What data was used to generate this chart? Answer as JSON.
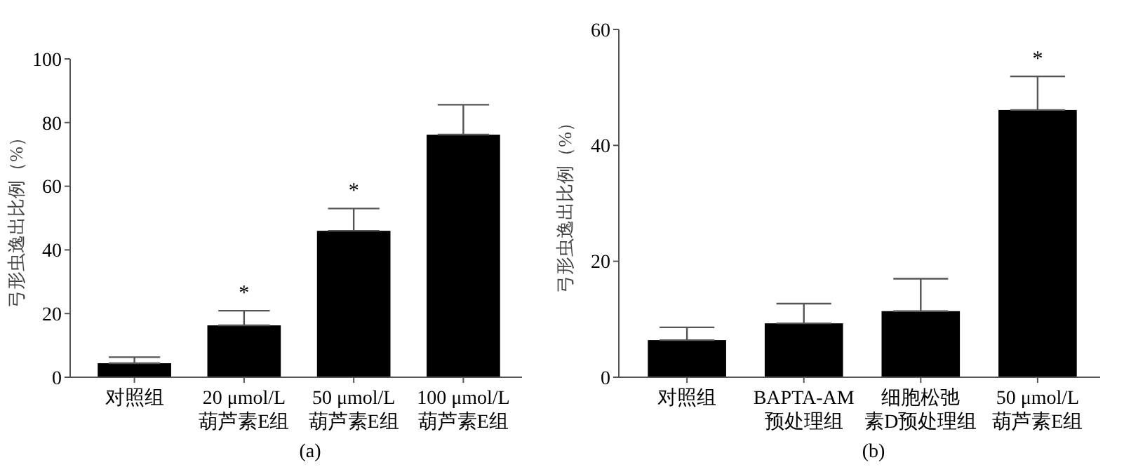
{
  "chart_data": [
    {
      "type": "bar",
      "ylabel": "弓形虫逸出比例（%）",
      "xlabel": "(a)",
      "categories": [
        "对照组",
        "20 μmol/L\n葫芦素E组",
        "50 μmol/L\n葫芦素E组",
        "100 μmol/L\n葫芦素E组"
      ],
      "values": [
        4.4,
        16.3,
        46,
        76.2
      ],
      "errors": [
        [
          4.4,
          6.3
        ],
        [
          16.3,
          20.9
        ],
        [
          46,
          53
        ],
        [
          76.2,
          85.6
        ]
      ],
      "color": "#000000",
      "ylim": [
        0,
        100
      ],
      "yticks": [
        0,
        20,
        40,
        60,
        80,
        100
      ],
      "grid": false,
      "annotations": [
        {
          "text": "*",
          "x": "20 μmol/L\n葫芦素E组",
          "y": 16.3
        },
        {
          "text": "*",
          "x": "50 μmol/L\n葫芦素E组",
          "y": 46
        }
      ]
    },
    {
      "type": "bar",
      "ylabel": "弓形虫逸出比例（%）",
      "xlabel": "(b)",
      "categories": [
        "对照组",
        "BAPTA-AM\n预处理组",
        "细胞松弛素D预处理组",
        "50 μmol/L\n葫芦素E组"
      ],
      "values": [
        6.4,
        9.3,
        11.4,
        46.1
      ],
      "errors": [
        [
          6.4,
          8.6
        ],
        [
          9.3,
          12.7
        ],
        [
          11.4,
          17
        ],
        [
          46.1,
          51.9
        ]
      ],
      "color": "#000000",
      "ylim": [
        0,
        60
      ],
      "yticks": [
        0,
        20,
        40,
        60
      ],
      "grid": false,
      "annotations": [
        {
          "text": "*",
          "x": "50 μmol/L\n葫芦素E组",
          "y": 46.1
        }
      ]
    }
  ]
}
